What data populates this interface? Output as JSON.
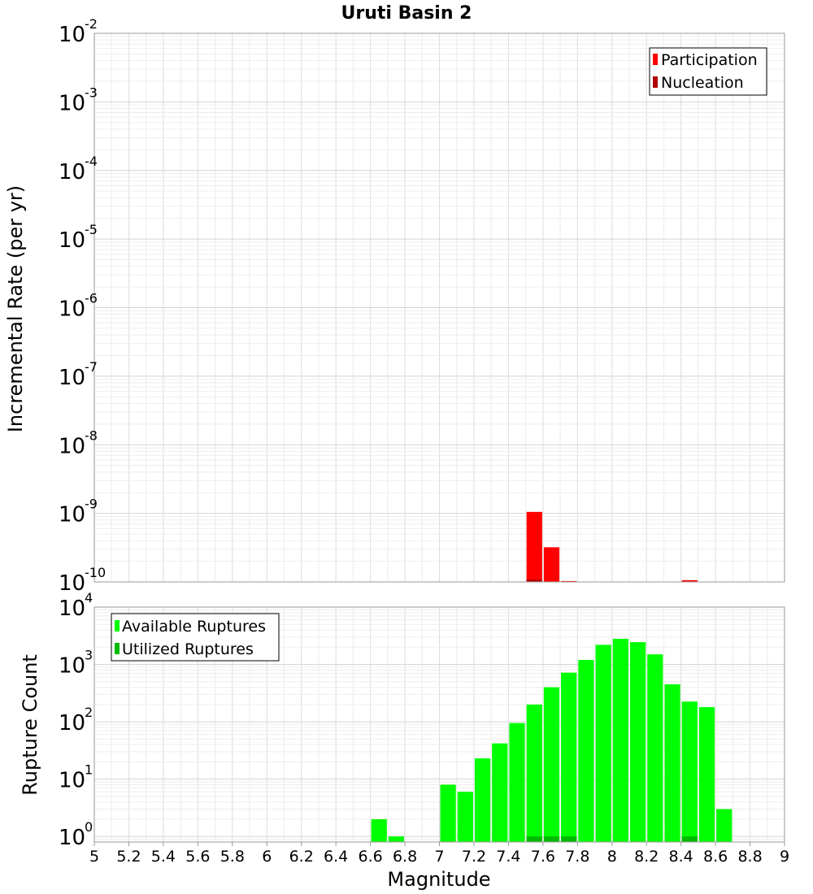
{
  "chart_data": [
    {
      "type": "bar",
      "title": "Uruti Basin 2",
      "ylabel": "Incremental Rate (per yr)",
      "xlabel": "",
      "xlim": [
        5,
        9
      ],
      "ylim": [
        1e-10,
        0.01
      ],
      "yscale": "log",
      "grid": true,
      "bin_width": 0.1,
      "legend_position": "top-right",
      "ytick_labels": [
        {
          "value": 1e-10,
          "base": "10",
          "exp": "-10"
        },
        {
          "value": 1e-09,
          "base": "10",
          "exp": "-9"
        },
        {
          "value": 1e-08,
          "base": "10",
          "exp": "-8"
        },
        {
          "value": 1e-07,
          "base": "10",
          "exp": "-7"
        },
        {
          "value": 1e-06,
          "base": "10",
          "exp": "-6"
        },
        {
          "value": 1e-05,
          "base": "10",
          "exp": "-5"
        },
        {
          "value": 0.0001,
          "base": "10",
          "exp": "-4"
        },
        {
          "value": 0.001,
          "base": "10",
          "exp": "-3"
        },
        {
          "value": 0.01,
          "base": "10",
          "exp": "-2"
        }
      ],
      "series": [
        {
          "name": "Participation",
          "color": "#ff0000",
          "points": [
            {
              "x": 7.55,
              "y": 1.05e-09
            },
            {
              "x": 7.65,
              "y": 3.2e-10
            },
            {
              "x": 7.75,
              "y": 1.03e-10
            },
            {
              "x": 8.45,
              "y": 1.06e-10
            }
          ]
        },
        {
          "name": "Nucleation",
          "color": "#b00000",
          "points": [
            {
              "x": 7.55,
              "y": 1.08e-10
            }
          ]
        }
      ]
    },
    {
      "type": "bar",
      "title": "",
      "ylabel": "Rupture Count",
      "xlabel": "Magnitude",
      "xlim": [
        5,
        9
      ],
      "ylim": [
        0.8,
        10000
      ],
      "yscale": "log",
      "grid": true,
      "bin_width": 0.1,
      "legend_position": "top-left",
      "xticks": [
        "5",
        "5.2",
        "5.4",
        "5.6",
        "5.8",
        "6",
        "6.2",
        "6.4",
        "6.6",
        "6.8",
        "7",
        "7.2",
        "7.4",
        "7.6",
        "7.8",
        "8",
        "8.2",
        "8.4",
        "8.6",
        "8.8",
        "9"
      ],
      "ytick_labels": [
        {
          "value": 1,
          "base": "10",
          "exp": "0"
        },
        {
          "value": 10,
          "base": "10",
          "exp": "1"
        },
        {
          "value": 100,
          "base": "10",
          "exp": "2"
        },
        {
          "value": 1000,
          "base": "10",
          "exp": "3"
        },
        {
          "value": 10000,
          "base": "10",
          "exp": "4"
        }
      ],
      "series": [
        {
          "name": "Available Ruptures",
          "color": "#00ff00",
          "points": [
            {
              "x": 6.65,
              "y": 2
            },
            {
              "x": 6.75,
              "y": 1
            },
            {
              "x": 7.05,
              "y": 8
            },
            {
              "x": 7.15,
              "y": 6
            },
            {
              "x": 7.25,
              "y": 23
            },
            {
              "x": 7.35,
              "y": 42
            },
            {
              "x": 7.45,
              "y": 95
            },
            {
              "x": 7.55,
              "y": 200
            },
            {
              "x": 7.65,
              "y": 400
            },
            {
              "x": 7.75,
              "y": 720
            },
            {
              "x": 7.85,
              "y": 1200
            },
            {
              "x": 7.95,
              "y": 2200
            },
            {
              "x": 8.05,
              "y": 2800
            },
            {
              "x": 8.15,
              "y": 2450
            },
            {
              "x": 8.25,
              "y": 1500
            },
            {
              "x": 8.35,
              "y": 450
            },
            {
              "x": 8.45,
              "y": 225
            },
            {
              "x": 8.55,
              "y": 180
            },
            {
              "x": 8.65,
              "y": 3
            }
          ]
        },
        {
          "name": "Utilized Ruptures",
          "color": "#00bb00",
          "points": [
            {
              "x": 7.55,
              "y": 1
            },
            {
              "x": 7.65,
              "y": 1
            },
            {
              "x": 7.75,
              "y": 1
            },
            {
              "x": 8.45,
              "y": 1
            }
          ]
        }
      ]
    }
  ]
}
